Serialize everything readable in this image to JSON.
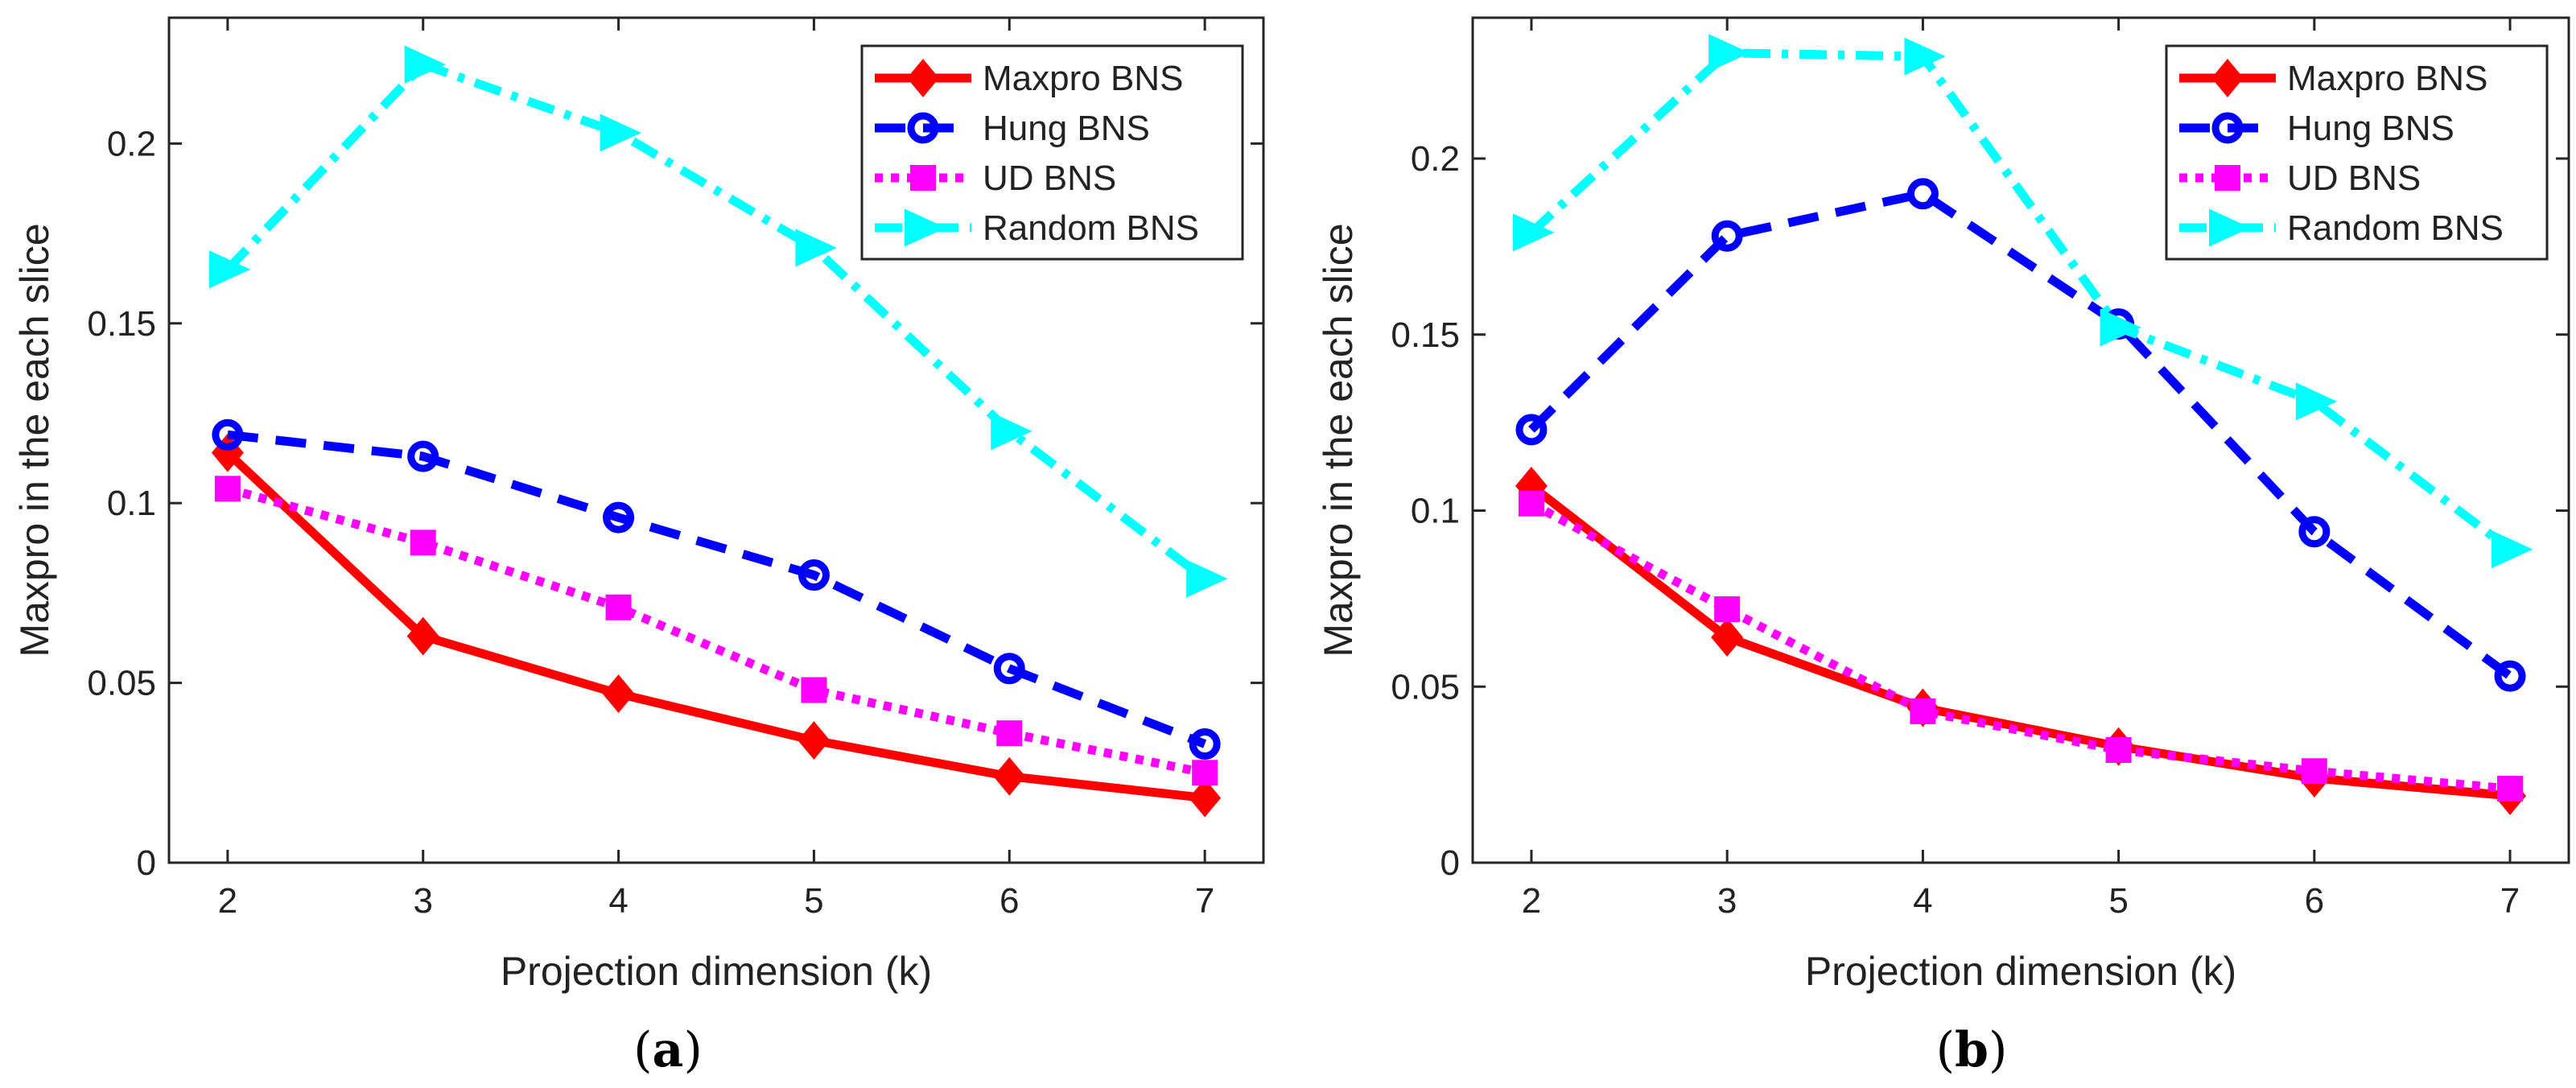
{
  "chart_data": [
    {
      "type": "line",
      "caption": "a",
      "xlabel": "Projection dimension (k)",
      "ylabel": "Maxpro in the each slice",
      "x": [
        2,
        3,
        4,
        5,
        6,
        7
      ],
      "xlim": [
        1.7,
        7.3
      ],
      "ylim": [
        0,
        0.235
      ],
      "xticks": [
        "2",
        "3",
        "4",
        "5",
        "6",
        "7"
      ],
      "yticks": [
        "0",
        "0.05",
        "0.1",
        "0.15",
        "0.2"
      ],
      "legend": "top-right",
      "grid": false,
      "series": [
        {
          "name": "Maxpro BNS",
          "color": "#ff0000",
          "style": "solid",
          "marker": "diamond",
          "values": [
            0.114,
            0.063,
            0.047,
            0.034,
            0.024,
            0.018
          ]
        },
        {
          "name": "Hung BNS",
          "color": "#0000ff",
          "style": "dashed",
          "marker": "circle",
          "values": [
            0.119,
            0.113,
            0.096,
            0.08,
            0.054,
            0.033
          ]
        },
        {
          "name": "UD BNS",
          "color": "#ff00ff",
          "style": "dotted",
          "marker": "square",
          "values": [
            0.104,
            0.089,
            0.071,
            0.048,
            0.036,
            0.025
          ]
        },
        {
          "name": "Random BNS",
          "color": "#00ffff",
          "style": "dashdot",
          "marker": "triangle-right",
          "values": [
            0.165,
            0.222,
            0.203,
            0.171,
            0.12,
            0.079
          ]
        }
      ]
    },
    {
      "type": "line",
      "caption": "b",
      "xlabel": "Projection dimension (k)",
      "ylabel": "Maxpro in the each slice",
      "x": [
        2,
        3,
        4,
        5,
        6,
        7
      ],
      "xlim": [
        1.7,
        7.3
      ],
      "ylim": [
        0,
        0.24
      ],
      "xticks": [
        "2",
        "3",
        "4",
        "5",
        "6",
        "7"
      ],
      "yticks": [
        "0",
        "0.05",
        "0.1",
        "0.15",
        "0.2"
      ],
      "legend": "top-right",
      "grid": false,
      "series": [
        {
          "name": "Maxpro BNS",
          "color": "#ff0000",
          "style": "solid",
          "marker": "diamond",
          "values": [
            0.107,
            0.064,
            0.044,
            0.033,
            0.024,
            0.019
          ]
        },
        {
          "name": "Hung BNS",
          "color": "#0000ff",
          "style": "dashed",
          "marker": "circle",
          "values": [
            0.123,
            0.178,
            0.19,
            0.153,
            0.094,
            0.053
          ]
        },
        {
          "name": "UD BNS",
          "color": "#ff00ff",
          "style": "dotted",
          "marker": "square",
          "values": [
            0.102,
            0.072,
            0.043,
            0.032,
            0.026,
            0.021
          ]
        },
        {
          "name": "Random BNS",
          "color": "#00ffff",
          "style": "dashdot",
          "marker": "triangle-right",
          "values": [
            0.179,
            0.23,
            0.229,
            0.152,
            0.131,
            0.089
          ]
        }
      ]
    }
  ]
}
